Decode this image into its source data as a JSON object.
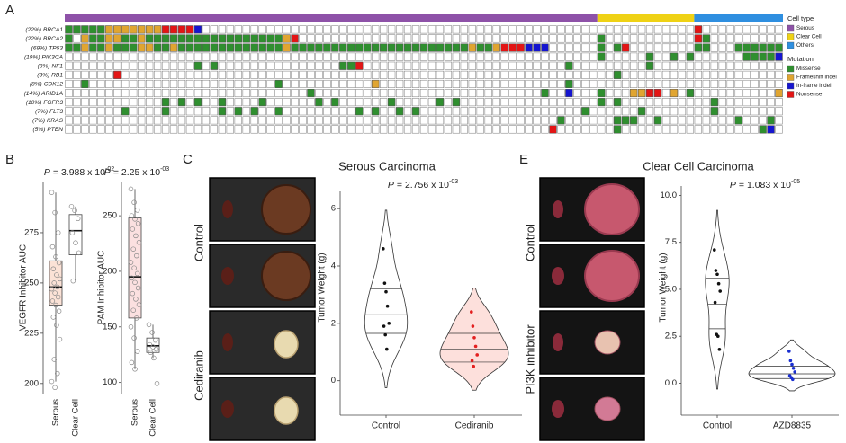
{
  "panel_a": {
    "label": "A",
    "cell_type_title": "Cell type",
    "cell_types": [
      {
        "name": "Serous",
        "color": "#8e52a8",
        "samples": 66
      },
      {
        "name": "Clear Cell",
        "color": "#efd215",
        "samples": 12
      },
      {
        "name": "Others",
        "color": "#2f8fe0",
        "samples": 11
      }
    ],
    "mutation_title": "Mutation",
    "mutation_types": [
      {
        "name": "Missense",
        "color": "#2f8f2f"
      },
      {
        "name": "Frameshift indel",
        "color": "#e0a531"
      },
      {
        "name": "In-frame indel",
        "color": "#1515d0"
      },
      {
        "name": "Nonsense",
        "color": "#e31515"
      }
    ],
    "genes": [
      {
        "pct": "(22%)",
        "name": "BRCA1",
        "mutations": [
          [
            0,
            1,
            2,
            3,
            4
          ],
          [
            5,
            6,
            7,
            8,
            9,
            10,
            11
          ],
          [
            16
          ],
          [
            12,
            13,
            14,
            15,
            78
          ]
        ]
      },
      {
        "pct": "(22%)",
        "name": "BRCA2",
        "mutations": [
          [
            0,
            3,
            4,
            7,
            8,
            10,
            11,
            12,
            13,
            14,
            15,
            16,
            17,
            18,
            19,
            20,
            21,
            22,
            23,
            24,
            25,
            26,
            66,
            79
          ],
          [
            2,
            5,
            6,
            9,
            27
          ],
          [],
          [
            28,
            78
          ]
        ]
      },
      {
        "pct": "(69%)",
        "name": "TP53",
        "mutations": [
          [
            0,
            1,
            3,
            4,
            6,
            7,
            8,
            11,
            12,
            14,
            15,
            16,
            17,
            18,
            19,
            20,
            21,
            22,
            23,
            24,
            25,
            26,
            28,
            29,
            30,
            31,
            32,
            33,
            34,
            35,
            36,
            37,
            38,
            39,
            40,
            41,
            42,
            43,
            44,
            45,
            46,
            47,
            48,
            49,
            51,
            52,
            66,
            68,
            78,
            79,
            83,
            84,
            85,
            86,
            87,
            88
          ],
          [
            2,
            5,
            9,
            10,
            13,
            27,
            50,
            53
          ],
          [
            57,
            58,
            59
          ],
          [
            54,
            55,
            56,
            69
          ]
        ]
      },
      {
        "pct": "(19%)",
        "name": "PIK3CA",
        "mutations": [
          [
            66,
            72,
            75,
            77,
            84,
            85,
            86,
            87
          ],
          [],
          [
            88
          ],
          []
        ]
      },
      {
        "pct": "(8%)",
        "name": "NF1",
        "mutations": [
          [
            16,
            18,
            34,
            35,
            62,
            72
          ],
          [],
          [],
          [
            36
          ]
        ]
      },
      {
        "pct": "(3%)",
        "name": "RB1",
        "mutations": [
          [
            68
          ],
          [],
          [],
          [
            6
          ]
        ]
      },
      {
        "pct": "(8%)",
        "name": "CDK12",
        "mutations": [
          [
            2,
            26,
            62
          ],
          [
            38
          ],
          [],
          []
        ]
      },
      {
        "pct": "(14%)",
        "name": "ARID1A",
        "mutations": [
          [
            30,
            59,
            66,
            77
          ],
          [
            70,
            71,
            75,
            88
          ],
          [
            62
          ],
          [
            72,
            73
          ]
        ]
      },
      {
        "pct": "(10%)",
        "name": "FGFR3",
        "mutations": [
          [
            12,
            14,
            16,
            19,
            24,
            31,
            33,
            40,
            46,
            48,
            66,
            68,
            80
          ],
          [],
          [],
          []
        ]
      },
      {
        "pct": "(7%)",
        "name": "FLT3",
        "mutations": [
          [
            7,
            12,
            19,
            21,
            23,
            26,
            36,
            38,
            41,
            43,
            64,
            71,
            80
          ],
          [],
          [],
          []
        ]
      },
      {
        "pct": "(7%)",
        "name": "KRAS",
        "mutations": [
          [
            61,
            68,
            69,
            70,
            73,
            83,
            87
          ],
          [],
          [],
          []
        ]
      },
      {
        "pct": "(5%)",
        "name": "PTEN",
        "mutations": [
          [
            68,
            86
          ],
          [],
          [
            87
          ],
          [
            60
          ]
        ]
      }
    ]
  },
  "panel_b": {
    "label": "B",
    "plots": [
      {
        "ylabel": "VEGFR Inhibitor AUC",
        "pvalue": {
          "symbol": "P",
          "mantissa": "= 3.988 x 10",
          "exponent": "-02"
        },
        "ylim": [
          195,
          300
        ],
        "yticks": [
          200,
          225,
          250,
          275
        ],
        "groups": [
          {
            "name": "Serous",
            "fill": "#fbe2d6",
            "whisker_low": 201,
            "q1": 239,
            "median": 248,
            "q3": 261,
            "whisker_high": 295,
            "points": [
              295,
              285,
              275,
              268,
              263,
              260,
              257,
              254,
              252,
              250,
              248,
              247,
              245,
              243,
              241,
              239,
              236,
              233,
              229,
              222,
              212,
              205,
              201,
              198
            ]
          },
          {
            "name": "Clear Cell",
            "fill": "#ffffff",
            "whisker_low": 251,
            "q1": 264,
            "median": 276,
            "q3": 284,
            "whisker_high": 288,
            "points": [
              288,
              286,
              282,
              275,
              270,
              265,
              251
            ]
          }
        ]
      },
      {
        "ylabel": "PAM Inhibitor AUC",
        "pvalue": {
          "symbol": "P",
          "mantissa": "= 2.25 x 10",
          "exponent": "-03"
        },
        "ylim": [
          90,
          280
        ],
        "yticks": [
          100,
          150,
          200,
          250
        ],
        "groups": [
          {
            "name": "Serous",
            "fill": "#fbe0e0",
            "whisker_low": 112,
            "q1": 158,
            "median": 195,
            "q3": 248,
            "whisker_high": 274,
            "points": [
              274,
              262,
              255,
              250,
              247,
              243,
              238,
              232,
              226,
              220,
              214,
              208,
              203,
              198,
              194,
              190,
              185,
              180,
              175,
              170,
              165,
              158,
              150,
              140,
              128,
              118,
              112
            ]
          },
          {
            "name": "Clear Cell",
            "fill": "#ffffff",
            "whisker_low": 122,
            "q1": 127,
            "median": 133,
            "q3": 140,
            "whisker_high": 152,
            "points": [
              152,
              145,
              138,
              134,
              132,
              130,
              127,
              122,
              99
            ]
          }
        ]
      }
    ]
  },
  "panel_c": {
    "label": "C",
    "title": "Serous Carcinoma",
    "photo_labels": [
      "Control",
      "Cediranib"
    ],
    "violin": {
      "pvalue": {
        "symbol": "P",
        "mantissa": "= 2.756 x 10",
        "exponent": "-03"
      },
      "ylabel": "Tumor Weight (g)",
      "ylim": [
        -1.2,
        6.6
      ],
      "yticks": [
        0,
        2,
        4,
        6
      ],
      "groups": [
        {
          "name": "Control",
          "fill": "#ffffff",
          "point_color": "#111111",
          "points": [
            4.6,
            3.4,
            3.1,
            2.6,
            2.0,
            1.9,
            1.6,
            1.1
          ],
          "quantiles": [
            1.65,
            2.3,
            3.2
          ]
        },
        {
          "name": "Cediranib",
          "fill": "#fde0dc",
          "point_color": "#e32020",
          "points": [
            2.4,
            1.9,
            1.5,
            1.2,
            0.9,
            0.7,
            0.5
          ],
          "quantiles": [
            0.65,
            1.1,
            1.65
          ]
        }
      ]
    }
  },
  "panel_e": {
    "label": "E",
    "title": "Clear Cell Carcinoma",
    "photo_labels": [
      "Control",
      "PI3K inhibitor"
    ],
    "violin": {
      "pvalue": {
        "symbol": "P",
        "mantissa": "= 1.083 x 10",
        "exponent": "-05"
      },
      "ylabel": "Tumor Weight (g)",
      "ylim": [
        -1.7,
        10.5
      ],
      "yticks": [
        {
          "value": 0,
          "label": "0.0"
        },
        {
          "value": 2.5,
          "label": "2.5"
        },
        {
          "value": 5,
          "label": "5.0"
        },
        {
          "value": 7.5,
          "label": "7.5"
        },
        {
          "value": 10,
          "label": "10.0"
        }
      ],
      "groups": [
        {
          "name": "Control",
          "fill": "#ffffff",
          "point_color": "#111111",
          "points": [
            7.1,
            6.0,
            5.8,
            5.3,
            4.9,
            4.3,
            2.6,
            2.5,
            1.8
          ],
          "quantiles": [
            2.9,
            4.2,
            5.6
          ]
        },
        {
          "name": "AZD8835",
          "fill": "#ffffff",
          "point_color": "#1a2fd0",
          "points": [
            1.7,
            1.2,
            1.0,
            0.8,
            0.6,
            0.4,
            0.3,
            0.2
          ],
          "quantiles": [
            0.25,
            0.5,
            0.9
          ]
        }
      ]
    }
  }
}
